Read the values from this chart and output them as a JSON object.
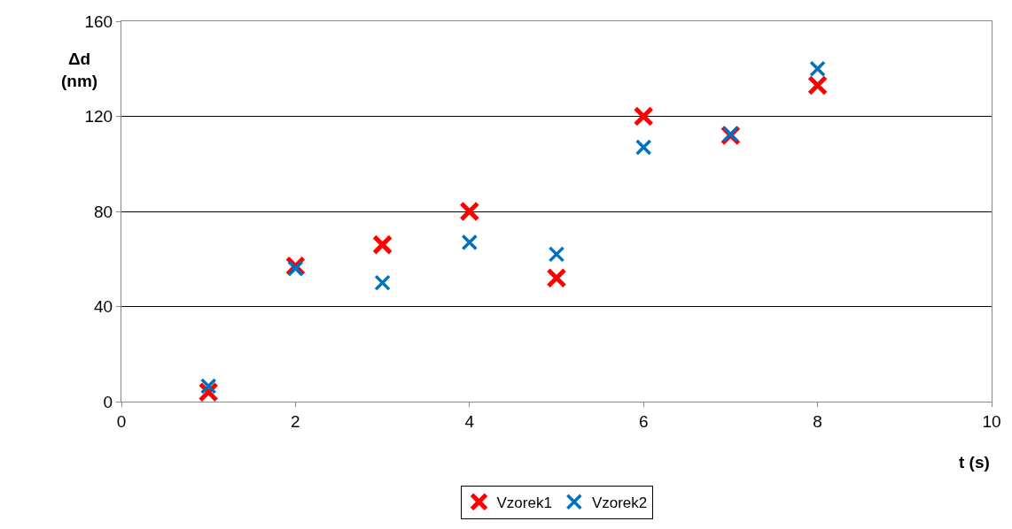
{
  "chart_data": {
    "type": "scatter",
    "xlabel": "t (s)",
    "ylabel": "Δd\n(nm)",
    "x": [
      1,
      2,
      3,
      4,
      5,
      6,
      7,
      8
    ],
    "series": [
      {
        "name": "Vzorek1",
        "color": "#ff0000",
        "values": [
          4,
          57,
          66,
          80,
          52,
          120,
          112,
          133
        ]
      },
      {
        "name": "Vzorek2",
        "color": "#0070c0",
        "values": [
          6.5,
          56,
          50,
          67,
          62,
          107,
          112.5,
          140
        ]
      }
    ],
    "xlim": [
      0,
      10
    ],
    "xticks": [
      0,
      2,
      4,
      6,
      8,
      10
    ],
    "ylim": [
      0,
      160
    ],
    "yticks": [
      0,
      40,
      80,
      120,
      160
    ],
    "grid": "y",
    "legend": "bottom",
    "marker": "cross"
  }
}
